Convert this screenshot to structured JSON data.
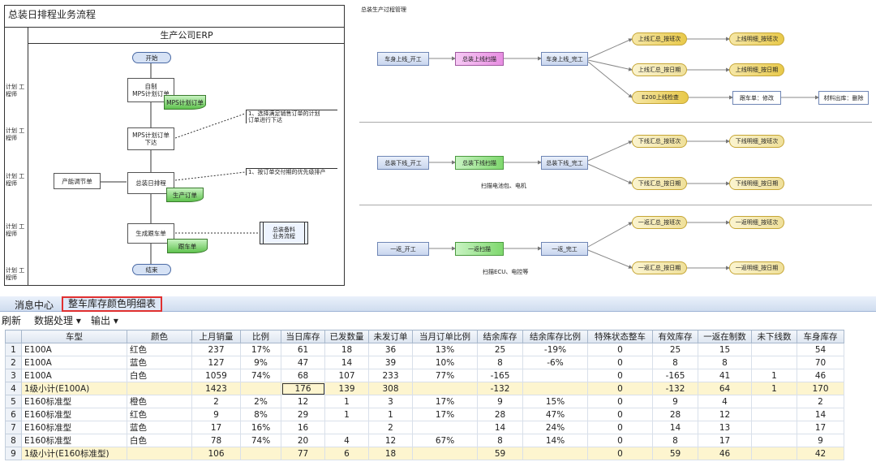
{
  "flow": {
    "title": "总装日排程业务流程",
    "erp_label": "生产公司ERP",
    "roles": [
      "计划\n工程师",
      "计划\n工程师",
      "计划\n工程师",
      "计划\n工程师",
      "计划\n工程师"
    ],
    "start": "开始",
    "mps_box": "自制\nMPS计划订单",
    "mps_doc": "MPS计划订单",
    "release_box": "MPS计划订单\n下达",
    "note1": "1、选择满足销售订单的计划\n订单进行下达",
    "adjust_box": "产能调节单",
    "schedule_box": "总装日排程",
    "prod_doc": "生产订单",
    "note2": "1、按订单交付期的优先级排产",
    "gen_box": "生成跟车单",
    "follow_doc": "跟车单",
    "sub_process": "总装备料\n业务流程",
    "end": "结束"
  },
  "process": {
    "title": "总装生产过程管理",
    "row1": {
      "a": "车身上线_开工",
      "b": "总装上线扫描",
      "c": "车身上线_完工",
      "e1": "上线汇总_按班次",
      "e1r": "上线明细_按班次",
      "e2": "上线汇总_按日期",
      "e2r": "上线明细_按日期",
      "e3": "E200上线检查",
      "e3b": "跟车单：修改",
      "e3c": "材料出库：删除"
    },
    "row2": {
      "a": "总装下线_开工",
      "b": "总装下线扫描",
      "c": "总装下线_完工",
      "e1": "下线汇总_按班次",
      "e1r": "下线明细_按班次",
      "e2": "下线汇总_按日期",
      "e2r": "下线明细_按日期",
      "caption": "扫描电池包、电机"
    },
    "row3": {
      "a": "一返_开工",
      "b": "一返扫描",
      "c": "一返_完工",
      "e1": "一返汇总_按班次",
      "e1r": "一返明细_按班次",
      "e2": "一返汇总_按日期",
      "e2r": "一返明细_按日期",
      "caption": "扫描ECU、电控等"
    }
  },
  "tabs": [
    "消息中心",
    "整车库存颜色明细表"
  ],
  "toolbar": {
    "refresh": "刷新",
    "data_menu": "数据处理 ▾",
    "export_menu": "输出 ▾"
  },
  "table": {
    "headers": [
      "车型",
      "颜色",
      "上月销量",
      "比例",
      "当日库存",
      "已发数量",
      "未发订单",
      "当月订单比例",
      "结余库存",
      "结余库存比例",
      "特殊状态整车",
      "有效库存",
      "一返在制数",
      "未下线数",
      "车身库存"
    ],
    "rows": [
      [
        "E100A",
        "红色",
        "237",
        "17%",
        "61",
        "18",
        "36",
        "13%",
        "25",
        "-19%",
        "0",
        "25",
        "15",
        "",
        "54"
      ],
      [
        "E100A",
        "蓝色",
        "127",
        "9%",
        "47",
        "14",
        "39",
        "10%",
        "8",
        "-6%",
        "0",
        "8",
        "8",
        "",
        "70"
      ],
      [
        "E100A",
        "白色",
        "1059",
        "74%",
        "68",
        "107",
        "233",
        "77%",
        "-165",
        "",
        "0",
        "-165",
        "41",
        "1",
        "46"
      ],
      [
        "1级小计(E100A)",
        "",
        "1423",
        "",
        "176",
        "139",
        "308",
        "",
        "-132",
        "",
        "0",
        "-132",
        "64",
        "1",
        "170"
      ],
      [
        "E160标准型",
        "橙色",
        "2",
        "2%",
        "12",
        "1",
        "3",
        "17%",
        "9",
        "15%",
        "0",
        "9",
        "4",
        "",
        "2"
      ],
      [
        "E160标准型",
        "红色",
        "9",
        "8%",
        "29",
        "1",
        "1",
        "17%",
        "28",
        "47%",
        "0",
        "28",
        "12",
        "",
        "14"
      ],
      [
        "E160标准型",
        "蓝色",
        "17",
        "16%",
        "16",
        "",
        "2",
        "",
        "14",
        "24%",
        "0",
        "14",
        "13",
        "",
        "17"
      ],
      [
        "E160标准型",
        "白色",
        "78",
        "74%",
        "20",
        "4",
        "12",
        "67%",
        "8",
        "14%",
        "0",
        "8",
        "17",
        "",
        "9"
      ],
      [
        "1级小计(E160标准型)",
        "",
        "106",
        "",
        "77",
        "6",
        "18",
        "",
        "59",
        "",
        "0",
        "59",
        "46",
        "",
        "42"
      ]
    ]
  }
}
